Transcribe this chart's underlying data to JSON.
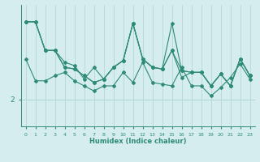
{
  "xlabel": "Humidex (Indice chaleur)",
  "x_values": [
    0,
    1,
    2,
    3,
    4,
    5,
    6,
    7,
    8,
    9,
    10,
    11,
    12,
    13,
    14,
    15,
    16,
    17,
    18,
    19,
    20,
    21,
    22,
    23
  ],
  "series": [
    [
      3.2,
      2.55,
      2.55,
      2.7,
      2.8,
      2.55,
      2.4,
      2.25,
      2.4,
      2.4,
      2.8,
      2.5,
      3.1,
      2.5,
      2.45,
      2.4,
      2.95,
      2.4,
      2.4,
      2.1,
      2.35,
      2.65,
      3.05,
      2.6
    ],
    [
      4.3,
      4.3,
      3.45,
      3.45,
      3.1,
      3.0,
      2.6,
      2.95,
      2.6,
      2.95,
      3.15,
      4.25,
      3.2,
      2.95,
      2.9,
      3.45,
      2.65,
      2.8,
      2.8,
      2.4,
      2.75,
      2.4,
      3.2,
      2.7
    ],
    [
      4.3,
      4.3,
      3.45,
      3.45,
      2.95,
      2.9,
      2.7,
      2.5,
      2.6,
      2.95,
      3.15,
      4.25,
      3.2,
      2.95,
      2.9,
      3.45,
      2.85,
      2.8,
      2.8,
      2.4,
      2.75,
      2.4,
      3.2,
      2.7
    ],
    [
      4.3,
      4.3,
      3.45,
      3.45,
      2.95,
      2.9,
      2.7,
      2.5,
      2.6,
      2.95,
      3.15,
      4.25,
      3.2,
      2.95,
      2.9,
      4.25,
      2.85,
      2.8,
      2.8,
      2.4,
      2.75,
      2.4,
      3.2,
      2.7
    ]
  ],
  "line_color": "#2e8b74",
  "bg_color": "#d5eded",
  "plot_bg_color": "#d5eded",
  "grid_color": "#afd4d4",
  "ytick_labels": [
    "2"
  ],
  "ytick_positions": [
    2.0
  ],
  "ylim": [
    1.2,
    4.8
  ],
  "xlim": [
    -0.5,
    23.5
  ],
  "marker": "D",
  "marker_size": 2,
  "line_width": 0.8
}
